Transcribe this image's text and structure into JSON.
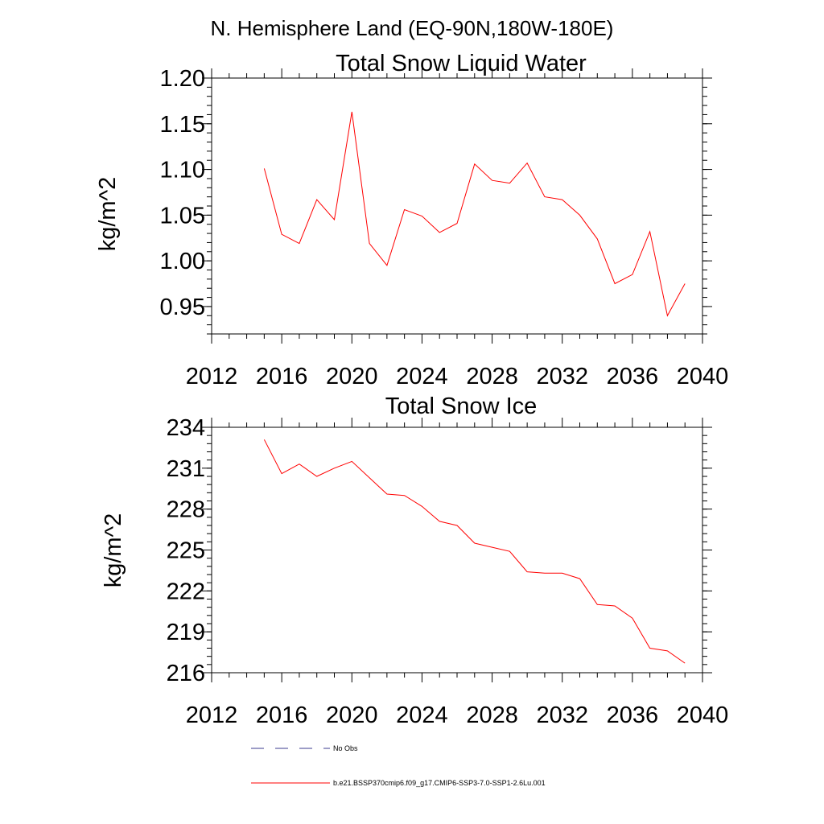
{
  "suptitle": "N. Hemisphere Land (EQ-90N,180W-180E)",
  "colors": {
    "model": "#ff0000",
    "obs": "#3b3b8f",
    "axis": "#000000"
  },
  "legend": {
    "obs_label": "No Obs",
    "model_label": "b.e21.BSSP370cmip6.f09_g17.CMIP6-SSP3-7.0-SSP1-2.6Lu.001"
  },
  "chart_data": [
    {
      "type": "line",
      "title": "Total Snow Liquid Water",
      "ylabel": "kg/m^2",
      "xlim": [
        2012,
        2040
      ],
      "ylim": [
        0.92,
        1.2
      ],
      "xticks": [
        2012,
        2016,
        2020,
        2024,
        2028,
        2032,
        2036,
        2040
      ],
      "xtick_labels": [
        "2012",
        "2016",
        "2020",
        "2024",
        "2028",
        "2032",
        "2036",
        "2040"
      ],
      "yticks": [
        0.95,
        1.0,
        1.05,
        1.1,
        1.15,
        1.2
      ],
      "ytick_labels": [
        "0.95",
        "1.00",
        "1.05",
        "1.10",
        "1.15",
        "1.20"
      ],
      "grid": false,
      "x": [
        2015,
        2016,
        2017,
        2018,
        2019,
        2020,
        2021,
        2022,
        2023,
        2024,
        2025,
        2026,
        2027,
        2028,
        2029,
        2030,
        2031,
        2032,
        2033,
        2034,
        2035,
        2036,
        2037,
        2038,
        2039
      ],
      "series": [
        {
          "values": [
            1.101,
            1.029,
            1.019,
            1.067,
            1.045,
            1.163,
            1.019,
            0.995,
            1.056,
            1.049,
            1.031,
            1.041,
            1.106,
            1.088,
            1.085,
            1.107,
            1.07,
            1.067,
            1.05,
            1.024,
            0.975,
            0.985,
            1.032,
            0.94,
            0.975
          ]
        }
      ]
    },
    {
      "type": "line",
      "title": "Total Snow Ice",
      "ylabel": "kg/m^2",
      "xlim": [
        2012,
        2040
      ],
      "ylim": [
        216,
        234
      ],
      "xticks": [
        2012,
        2016,
        2020,
        2024,
        2028,
        2032,
        2036,
        2040
      ],
      "xtick_labels": [
        "2012",
        "2016",
        "2020",
        "2024",
        "2028",
        "2032",
        "2036",
        "2040"
      ],
      "yticks": [
        216,
        219,
        222,
        225,
        228,
        231,
        234
      ],
      "ytick_labels": [
        "216",
        "219",
        "222",
        "225",
        "228",
        "231",
        "234"
      ],
      "grid": false,
      "x": [
        2015,
        2016,
        2017,
        2018,
        2019,
        2020,
        2021,
        2022,
        2023,
        2024,
        2025,
        2026,
        2027,
        2028,
        2029,
        2030,
        2031,
        2032,
        2033,
        2034,
        2035,
        2036,
        2037,
        2038,
        2039
      ],
      "series": [
        {
          "values": [
            233.1,
            230.6,
            231.3,
            230.4,
            231.0,
            231.5,
            230.3,
            229.1,
            229.0,
            228.2,
            227.1,
            226.8,
            225.5,
            225.2,
            224.9,
            223.4,
            223.3,
            223.3,
            222.9,
            221.0,
            220.9,
            220.0,
            217.8,
            217.6,
            216.7
          ]
        }
      ]
    }
  ]
}
